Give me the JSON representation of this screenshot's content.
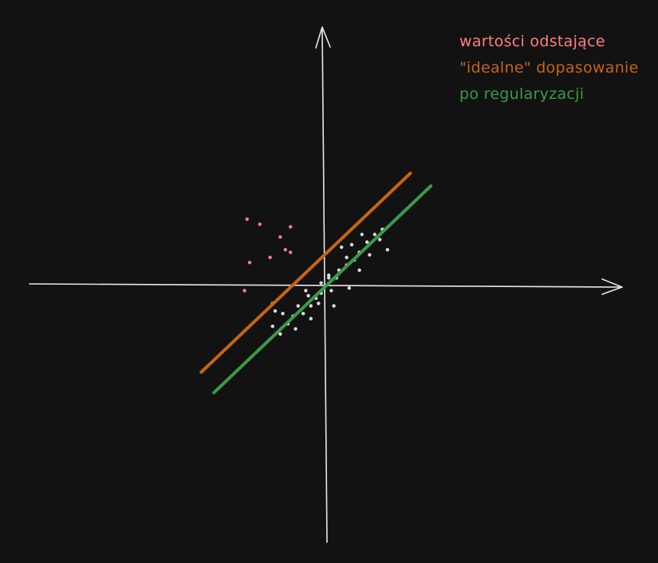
{
  "colors": {
    "background": "#121212",
    "axis": "#e6e6e6",
    "inliers": "#dcdcdc",
    "outliers": "#ff8080",
    "ideal_fit": "#c7650f",
    "regularized_fit": "#3a9a48"
  },
  "legend": {
    "outliers_label": "wartości odstające",
    "ideal_fit_label": "\"idealne\" dopasowanie",
    "regularized_fit_label": "po regularyzacji"
  },
  "chart_data": {
    "type": "scatter",
    "title": "",
    "xlabel": "",
    "ylabel": "",
    "xlim": [
      -10,
      10
    ],
    "ylim": [
      -9,
      9
    ],
    "grid": false,
    "legend_position": "top-right",
    "series": [
      {
        "name": "wartości odstające",
        "kind": "points",
        "color_key": "outliers",
        "points": [
          [
            -3.1,
            2.6
          ],
          [
            -2.6,
            2.4
          ],
          [
            -1.4,
            2.3
          ],
          [
            -1.8,
            1.9
          ],
          [
            -1.6,
            1.4
          ],
          [
            -2.2,
            1.1
          ],
          [
            -3.0,
            0.9
          ],
          [
            -1.4,
            1.3
          ],
          [
            -3.2,
            -0.2
          ]
        ]
      },
      {
        "name": "inliers",
        "kind": "points",
        "color_key": "inliers",
        "points": [
          [
            -2.1,
            -0.7
          ],
          [
            -1.7,
            -1.1
          ],
          [
            -1.3,
            -1.2
          ],
          [
            -0.9,
            -1.1
          ],
          [
            -0.6,
            -0.8
          ],
          [
            -0.4,
            -0.5
          ],
          [
            -0.2,
            -0.3
          ],
          [
            0.0,
            0.0
          ],
          [
            -0.7,
            -0.4
          ],
          [
            -0.3,
            -0.7
          ],
          [
            0.1,
            0.3
          ],
          [
            0.4,
            0.3
          ],
          [
            0.5,
            0.6
          ],
          [
            0.8,
            0.8
          ],
          [
            1.1,
            1.0
          ],
          [
            1.3,
            1.3
          ],
          [
            1.6,
            1.7
          ],
          [
            1.9,
            2.0
          ],
          [
            2.2,
            2.2
          ],
          [
            0.3,
            -0.8
          ],
          [
            -2.1,
            -1.6
          ],
          [
            -1.8,
            -1.9
          ],
          [
            -1.2,
            -1.7
          ],
          [
            0.9,
            -0.1
          ],
          [
            1.3,
            0.6
          ],
          [
            1.7,
            1.2
          ],
          [
            2.1,
            1.8
          ],
          [
            2.4,
            1.4
          ],
          [
            1.4,
            2.0
          ],
          [
            0.6,
            1.5
          ],
          [
            0.8,
            1.1
          ],
          [
            -0.6,
            -1.3
          ],
          [
            -0.2,
            0.1
          ],
          [
            0.2,
            -0.2
          ],
          [
            -1.5,
            -1.5
          ],
          [
            -1.1,
            -0.8
          ],
          [
            -0.8,
            -0.2
          ],
          [
            -2.0,
            -1.0
          ],
          [
            1.0,
            1.6
          ],
          [
            0.1,
            0.4
          ]
        ]
      },
      {
        "name": "\"idealne\" dopasowanie",
        "kind": "line",
        "color_key": "ideal_fit",
        "points": [
          [
            -4.9,
            -3.4
          ],
          [
            3.3,
            4.4
          ]
        ]
      },
      {
        "name": "po regularyzacji",
        "kind": "line",
        "color_key": "regularized_fit",
        "points": [
          [
            -4.4,
            -4.2
          ],
          [
            4.1,
            3.9
          ]
        ]
      }
    ]
  }
}
